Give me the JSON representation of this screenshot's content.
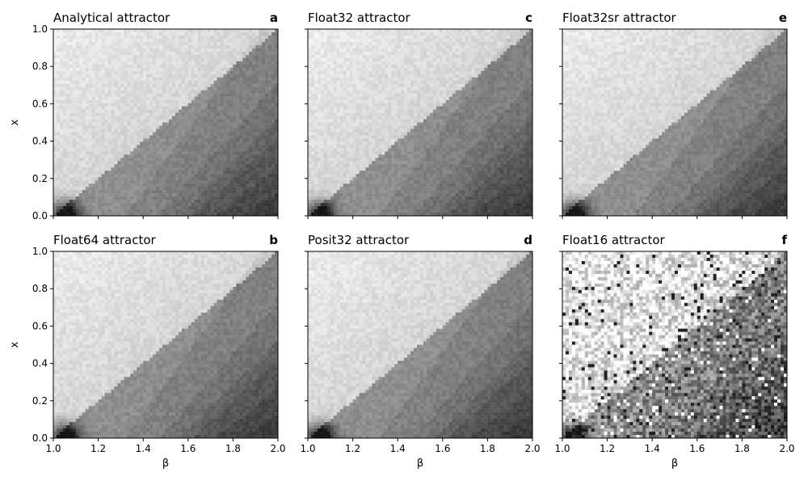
{
  "chart_data": [
    {
      "type": "heatmap",
      "title": "Analytical attractor",
      "panel_letter": "a",
      "xlabel": "",
      "ylabel": "x",
      "xlim": [
        1.0,
        2.0
      ],
      "ylim": [
        0.0,
        1.0
      ],
      "xticks": [
        1.0,
        1.2,
        1.4,
        1.6,
        1.8,
        2.0
      ],
      "yticks": [
        0.0,
        0.2,
        0.4,
        0.6,
        0.8,
        1.0
      ],
      "show_xtick_labels": false,
      "show_ytick_labels": true,
      "noise_level": 0.1,
      "stippled": false,
      "colormap": "grey density"
    },
    {
      "type": "heatmap",
      "title": "Float32 attractor",
      "panel_letter": "c",
      "xlabel": "",
      "ylabel": "",
      "xlim": [
        1.0,
        2.0
      ],
      "ylim": [
        0.0,
        1.0
      ],
      "xticks": [
        1.0,
        1.2,
        1.4,
        1.6,
        1.8,
        2.0
      ],
      "yticks": [
        0.0,
        0.2,
        0.4,
        0.6,
        0.8,
        1.0
      ],
      "show_xtick_labels": false,
      "show_ytick_labels": false,
      "noise_level": 0.1,
      "stippled": false,
      "colormap": "grey density"
    },
    {
      "type": "heatmap",
      "title": "Float32sr attractor",
      "panel_letter": "e",
      "xlabel": "",
      "ylabel": "",
      "xlim": [
        1.0,
        2.0
      ],
      "ylim": [
        0.0,
        1.0
      ],
      "xticks": [
        1.0,
        1.2,
        1.4,
        1.6,
        1.8,
        2.0
      ],
      "yticks": [
        0.0,
        0.2,
        0.4,
        0.6,
        0.8,
        1.0
      ],
      "show_xtick_labels": false,
      "show_ytick_labels": false,
      "noise_level": 0.1,
      "stippled": false,
      "colormap": "grey density"
    },
    {
      "type": "heatmap",
      "title": "Float64 attractor",
      "panel_letter": "b",
      "xlabel": "β",
      "ylabel": "x",
      "xlim": [
        1.0,
        2.0
      ],
      "ylim": [
        0.0,
        1.0
      ],
      "xticks": [
        1.0,
        1.2,
        1.4,
        1.6,
        1.8,
        2.0
      ],
      "yticks": [
        0.0,
        0.2,
        0.4,
        0.6,
        0.8,
        1.0
      ],
      "show_xtick_labels": true,
      "show_ytick_labels": true,
      "noise_level": 0.1,
      "stippled": false,
      "colormap": "grey density"
    },
    {
      "type": "heatmap",
      "title": "Posit32 attractor",
      "panel_letter": "d",
      "xlabel": "β",
      "ylabel": "",
      "xlim": [
        1.0,
        2.0
      ],
      "ylim": [
        0.0,
        1.0
      ],
      "xticks": [
        1.0,
        1.2,
        1.4,
        1.6,
        1.8,
        2.0
      ],
      "yticks": [
        0.0,
        0.2,
        0.4,
        0.6,
        0.8,
        1.0
      ],
      "show_xtick_labels": true,
      "show_ytick_labels": false,
      "noise_level": 0.1,
      "stippled": false,
      "colormap": "grey density"
    },
    {
      "type": "heatmap",
      "title": "Float16 attractor",
      "panel_letter": "f",
      "xlabel": "β",
      "ylabel": "",
      "xlim": [
        1.0,
        2.0
      ],
      "ylim": [
        0.0,
        1.0
      ],
      "xticks": [
        1.0,
        1.2,
        1.4,
        1.6,
        1.8,
        2.0
      ],
      "yticks": [
        0.0,
        0.2,
        0.4,
        0.6,
        0.8,
        1.0
      ],
      "show_xtick_labels": true,
      "show_ytick_labels": false,
      "noise_level": 0.45,
      "stippled": true,
      "colormap": "grey density"
    }
  ]
}
